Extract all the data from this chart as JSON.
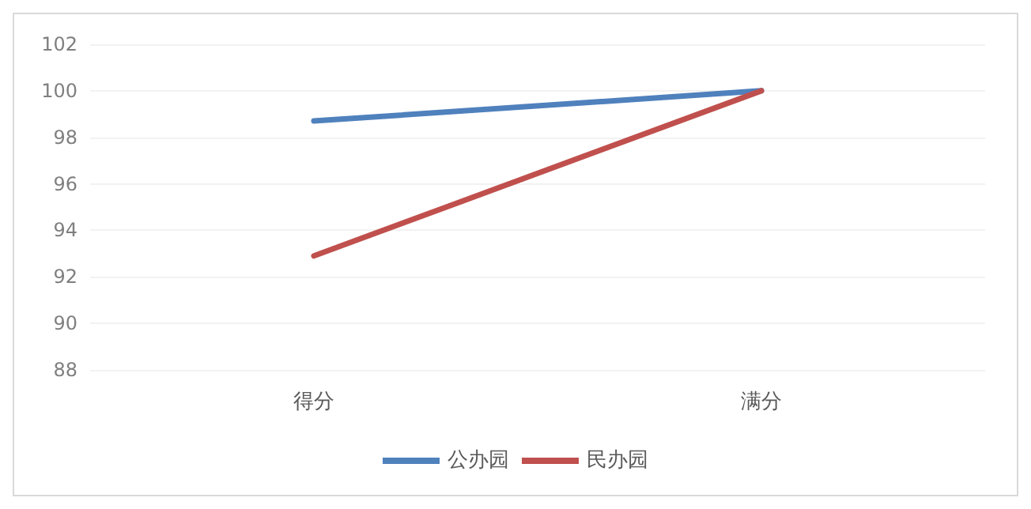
{
  "chart_data": {
    "type": "line",
    "categories": [
      "得分",
      "满分"
    ],
    "series": [
      {
        "name": "公办园",
        "color": "#4f81bd",
        "values": [
          98.7,
          100
        ]
      },
      {
        "name": "民办园",
        "color": "#c0504d",
        "values": [
          92.9,
          100
        ]
      }
    ],
    "ylim": [
      88,
      102
    ],
    "yticks": [
      88,
      90,
      92,
      94,
      96,
      98,
      100,
      102
    ],
    "grid": "y",
    "legend": "bottom",
    "marker": "none",
    "line_style": "solid"
  }
}
